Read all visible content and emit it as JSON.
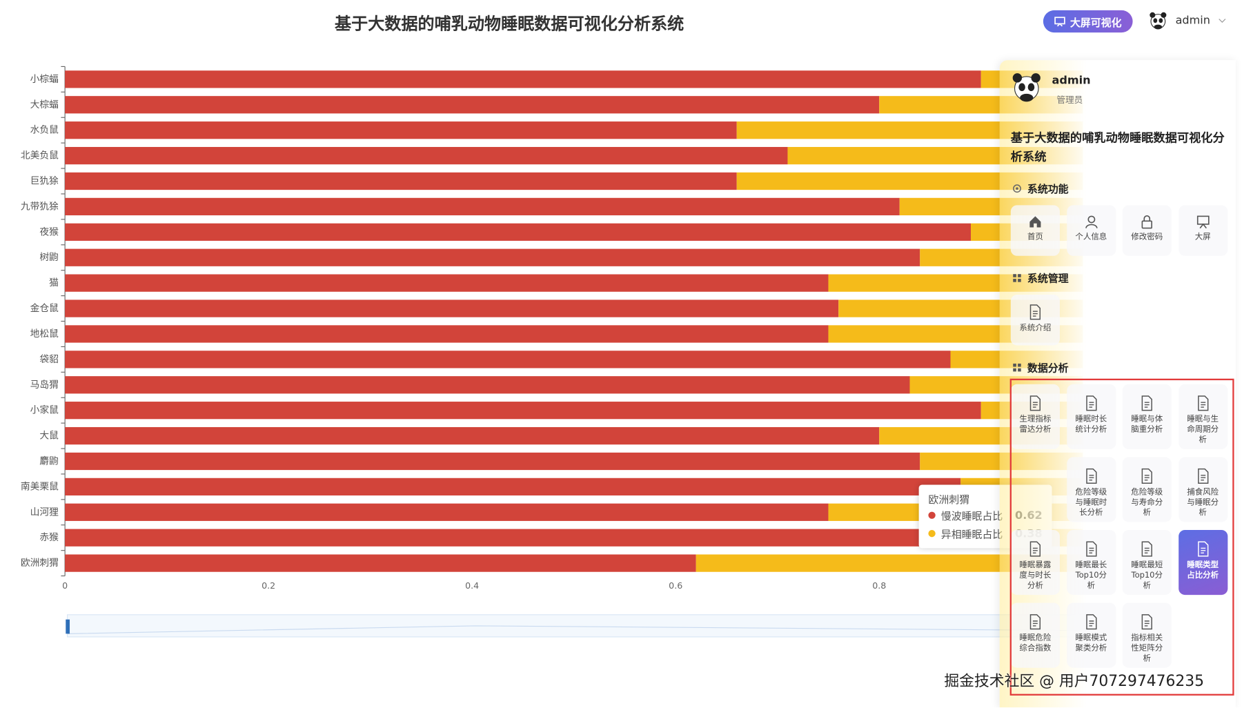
{
  "header": {
    "title": "基于大数据的哺乳动物睡眠数据可视化分析系统",
    "big_screen_button": "大屏可视化",
    "user": "admin"
  },
  "chart_data": {
    "type": "bar",
    "orientation": "horizontal",
    "stacked": true,
    "categories": [
      "小棕蝠",
      "大棕蝠",
      "水负鼠",
      "北美负鼠",
      "巨犰狳",
      "九带犰狳",
      "夜猴",
      "树鼩",
      "猫",
      "金仓鼠",
      "地松鼠",
      "袋貂",
      "马岛猬",
      "小家鼠",
      "大鼠",
      "麝鼩",
      "南美栗鼠",
      "山河狸",
      "赤猴",
      "欧洲刺猬"
    ],
    "series": [
      {
        "name": "慢波睡眠占比",
        "color": "#d2443a",
        "values": [
          0.9,
          0.8,
          0.66,
          0.71,
          0.66,
          0.82,
          0.89,
          0.84,
          0.75,
          0.76,
          0.75,
          0.87,
          0.83,
          0.9,
          0.8,
          0.84,
          0.88,
          0.75,
          0.84,
          0.62
        ]
      },
      {
        "name": "异相睡眠占比",
        "color": "#f5bb1a",
        "values": [
          0.1,
          0.2,
          0.34,
          0.29,
          0.34,
          0.18,
          0.11,
          0.16,
          0.25,
          0.24,
          0.25,
          0.13,
          0.17,
          0.1,
          0.2,
          0.16,
          0.12,
          0.25,
          0.16,
          0.38
        ]
      }
    ],
    "xlim": [
      0,
      1
    ],
    "xticks": [
      0,
      0.2,
      0.4,
      0.6,
      0.8
    ],
    "tooltip_category": 19
  },
  "sidebar": {
    "user": "admin",
    "role": "管理员",
    "system_title": "基于大数据的哺乳动物睡眠数据可视化分析系统",
    "sections": [
      {
        "title": "系统功能",
        "items": [
          "首页",
          "个人信息",
          "修改密码",
          "大屏"
        ]
      },
      {
        "title": "系统管理",
        "items": [
          "系统介绍"
        ]
      },
      {
        "title": "数据分析",
        "items": [
          "生理指标雷达分析",
          "睡眠时长统计分析",
          "睡眠与体脑重分析",
          "睡眠与生命周期分析",
          null,
          "危险等级与睡眠时长分析",
          "危险等级与寿命分析",
          "捕食风险与睡眠分析",
          "睡眠暴露度与时长分析",
          "睡眠最长Top10分析",
          "睡眠最短Top10分析",
          "睡眠类型占比分析",
          "睡眠危险综合指数",
          "睡眠模式聚类分析",
          "指标相关性矩阵分析"
        ],
        "active_item": 11
      }
    ]
  },
  "watermark": "掘金技术社区 @ 用户707297476235"
}
